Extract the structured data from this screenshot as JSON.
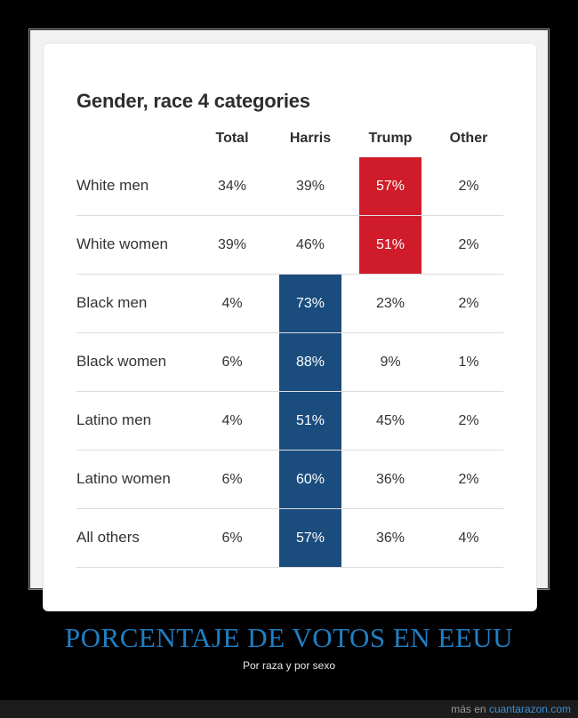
{
  "chart_data": {
    "type": "table",
    "title": "Gender, race 4 categories",
    "columns": [
      "Total",
      "Harris",
      "Trump",
      "Other"
    ],
    "rows": [
      {
        "label": "White men",
        "total": "34%",
        "harris": "39%",
        "trump": "57%",
        "other": "2%",
        "winner": "trump"
      },
      {
        "label": "White women",
        "total": "39%",
        "harris": "46%",
        "trump": "51%",
        "other": "2%",
        "winner": "trump"
      },
      {
        "label": "Black men",
        "total": "4%",
        "harris": "73%",
        "trump": "23%",
        "other": "2%",
        "winner": "harris"
      },
      {
        "label": "Black women",
        "total": "6%",
        "harris": "88%",
        "trump": "9%",
        "other": "1%",
        "winner": "harris"
      },
      {
        "label": "Latino men",
        "total": "4%",
        "harris": "51%",
        "trump": "45%",
        "other": "2%",
        "winner": "harris"
      },
      {
        "label": "Latino women",
        "total": "6%",
        "harris": "60%",
        "trump": "36%",
        "other": "2%",
        "winner": "harris"
      },
      {
        "label": "All others",
        "total": "6%",
        "harris": "57%",
        "trump": "36%",
        "other": "4%",
        "winner": "harris"
      }
    ],
    "colors": {
      "harris": "#1a4c7e",
      "trump": "#d01c2a"
    }
  },
  "caption": {
    "title": "PORCENTAJE DE VOTOS EN EEUU",
    "subtitle": "Por raza y por sexo"
  },
  "footer": {
    "prefix": "más en",
    "site": "cuantarazon.com"
  }
}
